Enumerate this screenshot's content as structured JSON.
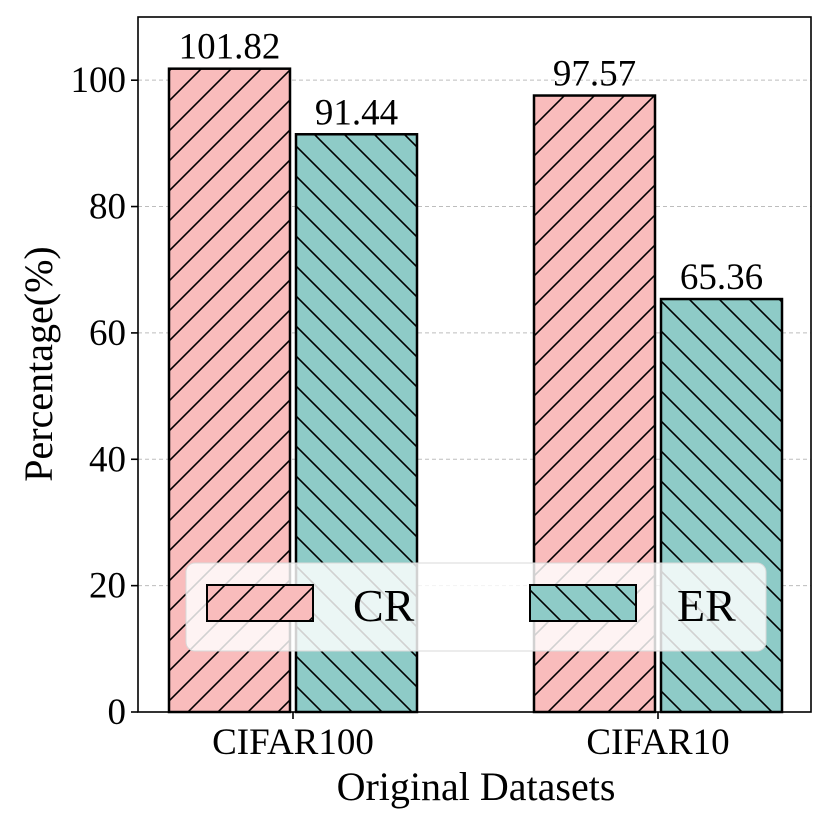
{
  "chart_data": {
    "type": "bar",
    "categories": [
      "CIFAR100",
      "CIFAR10"
    ],
    "series": [
      {
        "name": "CR",
        "values": [
          101.82,
          97.57
        ],
        "color": "#f9bcbc",
        "hatch": "forward-diagonal"
      },
      {
        "name": "ER",
        "values": [
          91.44,
          65.36
        ],
        "color": "#8ecbc7",
        "hatch": "back-diagonal"
      }
    ],
    "data_labels": [
      [
        "101.82",
        "97.57"
      ],
      [
        "91.44",
        "65.36"
      ]
    ],
    "xlabel": "Original Datasets",
    "ylabel": "Percentage(%)",
    "ylim": [
      0,
      110
    ],
    "yticks": [
      0,
      20,
      40,
      60,
      80,
      100
    ],
    "grid": "horizontal-dashed",
    "legend_position": "lower-center"
  }
}
